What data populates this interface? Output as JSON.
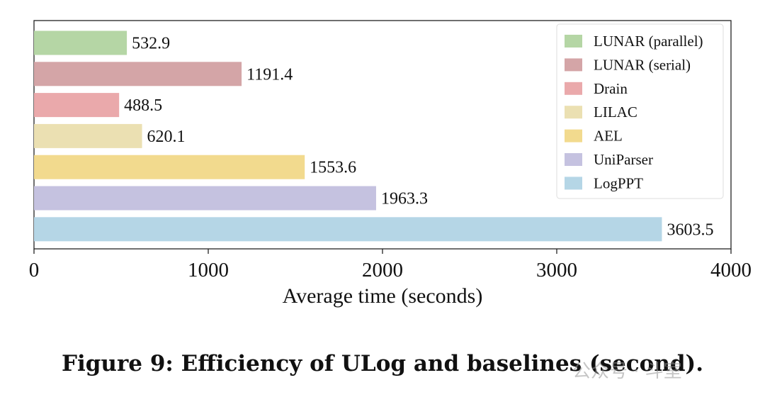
{
  "chart_data": {
    "type": "bar",
    "orientation": "horizontal",
    "categories": [
      "LUNAR (parallel)",
      "LUNAR (serial)",
      "Drain",
      "LILAC",
      "AEL",
      "UniParser",
      "LogPPT"
    ],
    "values": [
      532.9,
      1191.4,
      488.5,
      620.1,
      1553.6,
      1963.3,
      3603.5
    ],
    "value_labels": [
      "532.9",
      "1191.4",
      "488.5",
      "620.1",
      "1553.6",
      "1963.3",
      "3603.5"
    ],
    "colors": [
      "#b5d6a5",
      "#d4a5a7",
      "#eaa9ab",
      "#ebe0b2",
      "#f2da8e",
      "#c5c2e0",
      "#b5d6e6"
    ],
    "xlabel": "Average time (seconds)",
    "ylabel": "",
    "xlim": [
      0,
      4000
    ],
    "xticks": [
      0,
      1000,
      2000,
      3000,
      4000
    ],
    "xtick_labels": [
      "0",
      "1000",
      "2000",
      "3000",
      "4000"
    ],
    "grid": false,
    "legend_position": "top-right",
    "legend_entries": [
      "LUNAR (parallel)",
      "LUNAR (serial)",
      "Drain",
      "LILAC",
      "AEL",
      "UniParser",
      "LogPPT"
    ]
  },
  "caption": "Figure 9: Efficiency of ULog and baselines (second).",
  "watermark": "公众号 · 斗室"
}
